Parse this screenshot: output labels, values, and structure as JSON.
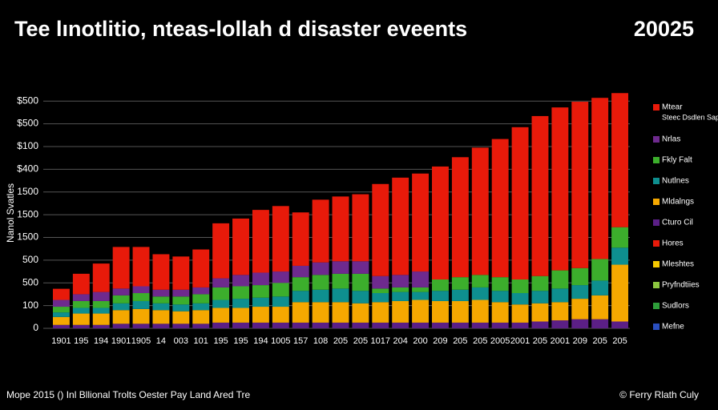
{
  "chart_data": {
    "type": "stacked_bar",
    "title": "Tee lınotlitio, nteas-lollah d disaster eveents",
    "title_year": "20025",
    "ylabel": "Nanol Svatles",
    "footer_left": "Mope 2015 () Inl Bllional Trolts Oester Pay Land Ared Tre",
    "footer_right": "© Ferry Rlath Culy",
    "categories": [
      "1901",
      "195",
      "194",
      "1901",
      "1905",
      "14",
      "003",
      "101",
      "195",
      "195",
      "194",
      "1005",
      "157",
      "108",
      "205",
      "205",
      "1017",
      "204",
      "200",
      "209",
      "205",
      "205",
      "2005",
      "2001",
      "205",
      "2001",
      "209",
      "205",
      "205"
    ],
    "ylim": [
      0,
      1050
    ],
    "yticks": [
      0,
      100,
      {
        "value": 200,
        "label": "500"
      },
      {
        "value": 300,
        "label": "500"
      },
      {
        "value": 400,
        "label": "1500"
      },
      {
        "value": 500,
        "label": "1500"
      },
      {
        "value": 600,
        "label": "1500"
      },
      {
        "value": 700,
        "label": "$400"
      },
      {
        "value": 800,
        "label": "$100"
      },
      {
        "value": 900,
        "label": "$500"
      },
      {
        "value": 1000,
        "label": "$500"
      }
    ],
    "grid": true,
    "series": [
      {
        "name": "Cturo Cil",
        "color": "#5b1f86",
        "values": [
          15,
          15,
          15,
          20,
          20,
          20,
          20,
          20,
          25,
          25,
          25,
          25,
          25,
          25,
          25,
          25,
          25,
          25,
          25,
          25,
          25,
          25,
          25,
          25,
          30,
          35,
          40,
          40,
          30
        ]
      },
      {
        "name": "Mldalngs",
        "color": "#f5a800",
        "values": [
          35,
          50,
          50,
          60,
          65,
          60,
          55,
          60,
          65,
          65,
          70,
          70,
          90,
          90,
          90,
          85,
          90,
          95,
          100,
          95,
          95,
          100,
          90,
          80,
          80,
          80,
          90,
          105,
          250
        ]
      },
      {
        "name": "Nutlnes",
        "color": "#0e8f8f",
        "values": [
          20,
          25,
          25,
          30,
          35,
          30,
          30,
          30,
          35,
          40,
          40,
          45,
          50,
          55,
          60,
          55,
          40,
          40,
          35,
          45,
          50,
          55,
          50,
          50,
          55,
          60,
          60,
          65,
          75
        ]
      },
      {
        "name": "Fkly Falt",
        "color": "#3cae2c",
        "values": [
          25,
          30,
          30,
          35,
          35,
          30,
          35,
          40,
          55,
          55,
          55,
          60,
          60,
          65,
          65,
          75,
          20,
          20,
          20,
          50,
          55,
          55,
          60,
          60,
          65,
          80,
          75,
          95,
          90
        ]
      },
      {
        "name": "Nrlas",
        "color": "#6e2a8e",
        "values": [
          30,
          30,
          40,
          30,
          30,
          30,
          30,
          30,
          40,
          50,
          55,
          50,
          50,
          55,
          55,
          55,
          55,
          55,
          70,
          0,
          0,
          0,
          0,
          0,
          0,
          0,
          0,
          0,
          0
        ]
      },
      {
        "name": "Mtear",
        "color": "#e81a0a",
        "values": [
          49,
          90,
          125,
          183,
          173,
          156,
          146,
          167,
          242,
          248,
          276,
          288,
          235,
          276,
          285,
          295,
          405,
          428,
          431,
          497,
          528,
          560,
          608,
          670,
          704,
          717,
          732,
          709,
          590
        ]
      },
      {
        "name": "Hores",
        "color": "#e81a0a"
      },
      {
        "name": "Mleshtes",
        "color": "#f5c800"
      },
      {
        "name": "Pryfndtiies",
        "color": "#8cc63f"
      },
      {
        "name": "Sudlors",
        "color": "#2e9e3a"
      },
      {
        "name": "Mefne",
        "color": "#2a4fbf"
      }
    ],
    "legend_note": "Steec Dsdlen Saptas"
  }
}
